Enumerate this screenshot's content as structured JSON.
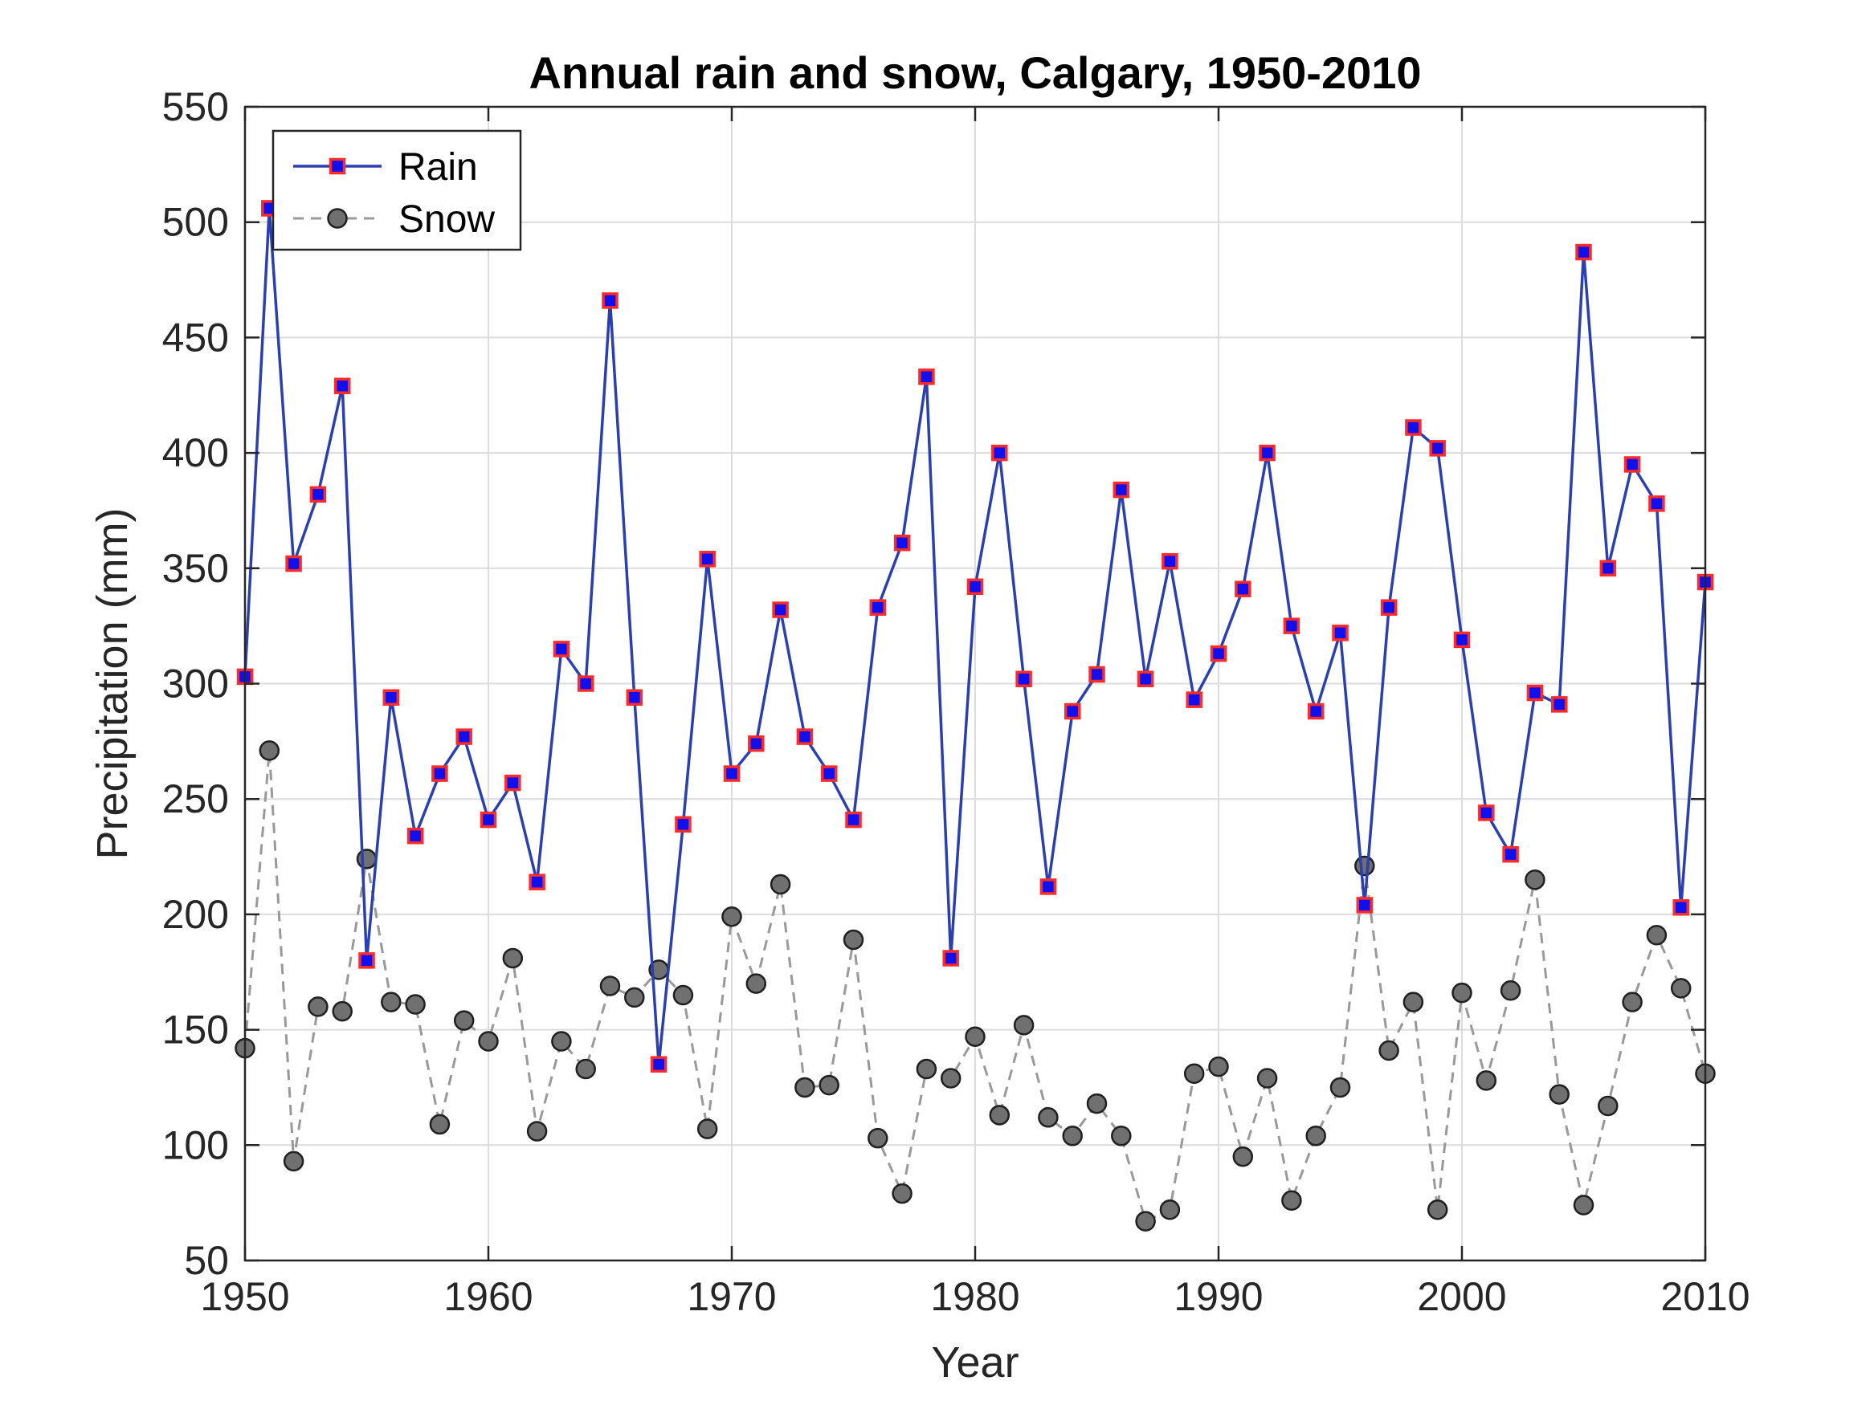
{
  "chart_data": {
    "type": "line",
    "title": "Annual rain and snow, Calgary, 1950-2010",
    "xlabel": "Year",
    "ylabel": "Precipitation (mm)",
    "xlim": [
      1950,
      2010
    ],
    "ylim": [
      50,
      550
    ],
    "xticks": [
      1950,
      1960,
      1970,
      1980,
      1990,
      2000,
      2010
    ],
    "yticks": [
      50,
      100,
      150,
      200,
      250,
      300,
      350,
      400,
      450,
      500,
      550
    ],
    "grid": true,
    "legend_position": "top-left",
    "x": [
      1950,
      1951,
      1952,
      1953,
      1954,
      1955,
      1956,
      1957,
      1958,
      1959,
      1960,
      1961,
      1962,
      1963,
      1964,
      1965,
      1966,
      1967,
      1968,
      1969,
      1970,
      1971,
      1972,
      1973,
      1974,
      1975,
      1976,
      1977,
      1978,
      1979,
      1980,
      1981,
      1982,
      1983,
      1984,
      1985,
      1986,
      1987,
      1988,
      1989,
      1990,
      1991,
      1992,
      1993,
      1994,
      1995,
      1996,
      1997,
      1998,
      1999,
      2000,
      2001,
      2002,
      2003,
      2004,
      2005,
      2006,
      2007,
      2008,
      2009,
      2010
    ],
    "series": [
      {
        "name": "Rain",
        "style": "solid-square",
        "color": "#2b3fb0",
        "marker_fill": "#1010ee",
        "marker_edge": "#ff2a2a",
        "values": [
          303,
          506,
          352,
          382,
          429,
          180,
          294,
          234,
          261,
          277,
          241,
          257,
          214,
          315,
          300,
          466,
          294,
          135,
          239,
          354,
          261,
          274,
          332,
          277,
          261,
          241,
          333,
          361,
          433,
          181,
          342,
          400,
          302,
          212,
          288,
          304,
          384,
          302,
          353,
          293,
          313,
          341,
          400,
          325,
          288,
          322,
          204,
          333,
          411,
          402,
          319,
          244,
          226,
          296,
          291,
          487,
          350,
          395,
          378,
          203,
          344
        ]
      },
      {
        "name": "Snow",
        "style": "dashed-circle",
        "color": "#999999",
        "marker_fill": "#707070",
        "marker_edge": "#202020",
        "values": [
          142,
          271,
          93,
          160,
          158,
          224,
          162,
          161,
          109,
          154,
          145,
          181,
          106,
          145,
          133,
          169,
          164,
          176,
          165,
          107,
          199,
          170,
          213,
          125,
          126,
          189,
          103,
          79,
          133,
          129,
          147,
          113,
          152,
          112,
          104,
          118,
          104,
          67,
          72,
          131,
          134,
          95,
          129,
          76,
          104,
          125,
          221,
          141,
          162,
          72,
          166,
          128,
          167,
          215,
          122,
          74,
          117,
          162,
          191,
          168,
          131
        ]
      }
    ]
  }
}
